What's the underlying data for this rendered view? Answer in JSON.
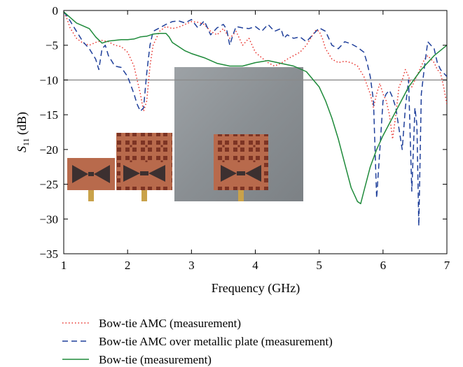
{
  "chart_data": {
    "type": "line",
    "xlabel": "Frequency (GHz)",
    "ylabel_main": "S",
    "ylabel_sub": "11",
    "ylabel_unit": " (dB)",
    "xlim": [
      1,
      7
    ],
    "ylim": [
      -35,
      0
    ],
    "xticks": [
      "1",
      "2",
      "3",
      "4",
      "5",
      "6",
      "7"
    ],
    "yticks": [
      "0",
      "−5",
      "−10",
      "−15",
      "−20",
      "−25",
      "−30",
      "−35"
    ],
    "reference_line_y": -10,
    "inset_photo": "antenna-prototype-photos",
    "colors": {
      "amc": "#e8302a",
      "amc_metal": "#1f3f9a",
      "bowtie": "#1e8a3a",
      "reference": "#8a8a8a"
    },
    "series": [
      {
        "name": "Bow-tie AMC (measurement)",
        "style": "dotted",
        "x": [
          1.0,
          1.05,
          1.1,
          1.2,
          1.3,
          1.4,
          1.5,
          1.6,
          1.7,
          1.8,
          1.9,
          2.0,
          2.1,
          2.2,
          2.25,
          2.3,
          2.35,
          2.4,
          2.5,
          2.6,
          2.7,
          2.8,
          2.9,
          3.0,
          3.1,
          3.2,
          3.3,
          3.4,
          3.5,
          3.6,
          3.7,
          3.8,
          3.9,
          4.0,
          4.1,
          4.2,
          4.3,
          4.4,
          4.5,
          4.6,
          4.7,
          4.8,
          4.9,
          4.95,
          5.0,
          5.05,
          5.1,
          5.2,
          5.3,
          5.4,
          5.5,
          5.6,
          5.7,
          5.8,
          5.85,
          5.9,
          5.95,
          6.0,
          6.05,
          6.1,
          6.15,
          6.2,
          6.25,
          6.3,
          6.35,
          6.4,
          6.45,
          6.5,
          6.55,
          6.6,
          6.65,
          6.7,
          6.75,
          6.8,
          6.85,
          6.9,
          6.95,
          7.0
        ],
        "y": [
          -0.3,
          -1.2,
          -2.5,
          -4.0,
          -4.7,
          -5.0,
          -4.6,
          -4.3,
          -4.5,
          -5.0,
          -5.2,
          -6.0,
          -8.0,
          -12.0,
          -14.5,
          -13.0,
          -8.0,
          -5.0,
          -3.0,
          -2.3,
          -2.6,
          -2.4,
          -2.0,
          -1.6,
          -1.7,
          -2.0,
          -3.0,
          -3.5,
          -2.6,
          -4.0,
          -3.0,
          -5.0,
          -4.0,
          -6.0,
          -6.8,
          -7.5,
          -8.0,
          -7.6,
          -7.0,
          -6.5,
          -6.0,
          -5.0,
          -3.5,
          -2.8,
          -3.0,
          -4.0,
          -5.5,
          -7.0,
          -7.5,
          -7.3,
          -7.5,
          -8.0,
          -9.5,
          -12.0,
          -14.0,
          -12.0,
          -10.5,
          -12.0,
          -13.0,
          -15.0,
          -18.5,
          -15.0,
          -11.0,
          -10.0,
          -8.5,
          -9.5,
          -11.0,
          -10.0,
          -9.0,
          -8.0,
          -7.0,
          -6.5,
          -7.0,
          -7.5,
          -8.5,
          -9.0,
          -11.0,
          -13.5
        ]
      },
      {
        "name": "Bow-tie AMC over metallic plate (measurement)",
        "style": "dashed",
        "x": [
          1.0,
          1.05,
          1.1,
          1.2,
          1.3,
          1.4,
          1.5,
          1.55,
          1.6,
          1.65,
          1.7,
          1.8,
          1.9,
          2.0,
          2.1,
          2.15,
          2.2,
          2.25,
          2.3,
          2.35,
          2.4,
          2.5,
          2.6,
          2.7,
          2.8,
          2.9,
          3.0,
          3.1,
          3.2,
          3.3,
          3.4,
          3.5,
          3.55,
          3.6,
          3.65,
          3.7,
          3.8,
          3.9,
          4.0,
          4.1,
          4.2,
          4.3,
          4.4,
          4.45,
          4.5,
          4.6,
          4.7,
          4.8,
          4.9,
          5.0,
          5.1,
          5.2,
          5.3,
          5.4,
          5.5,
          5.6,
          5.7,
          5.75,
          5.8,
          5.85,
          5.9,
          5.95,
          6.0,
          6.05,
          6.1,
          6.15,
          6.2,
          6.25,
          6.3,
          6.35,
          6.4,
          6.45,
          6.5,
          6.53,
          6.56,
          6.6,
          6.65,
          6.7,
          6.75,
          6.8,
          6.85,
          6.9,
          6.95,
          7.0
        ],
        "y": [
          -0.2,
          -0.8,
          -1.5,
          -3.0,
          -4.5,
          -5.5,
          -7.0,
          -8.5,
          -5.5,
          -5.0,
          -6.5,
          -8.0,
          -8.2,
          -9.5,
          -12.0,
          -13.5,
          -14.5,
          -14.0,
          -9.0,
          -5.0,
          -3.0,
          -2.5,
          -2.0,
          -1.6,
          -1.5,
          -1.8,
          -1.3,
          -2.5,
          -1.5,
          -3.5,
          -2.5,
          -2.0,
          -2.7,
          -5.0,
          -3.5,
          -2.3,
          -2.5,
          -2.6,
          -2.3,
          -3.0,
          -2.0,
          -3.0,
          -2.6,
          -4.0,
          -3.5,
          -4.0,
          -3.8,
          -4.5,
          -3.5,
          -2.5,
          -3.0,
          -5.0,
          -5.5,
          -4.5,
          -4.8,
          -5.3,
          -6.0,
          -7.5,
          -9.5,
          -13.0,
          -27.0,
          -20.0,
          -13.0,
          -12.0,
          -11.5,
          -12.5,
          -14.0,
          -17.0,
          -20.0,
          -14.0,
          -10.0,
          -26.0,
          -14.0,
          -16.5,
          -31.0,
          -12.0,
          -8.0,
          -4.5,
          -5.0,
          -5.5,
          -7.5,
          -8.5,
          -9.0,
          -9.5
        ]
      },
      {
        "name": "Bow-tie (measurement)",
        "style": "solid",
        "x": [
          1.0,
          1.1,
          1.2,
          1.3,
          1.4,
          1.5,
          1.6,
          1.7,
          1.8,
          1.9,
          2.0,
          2.1,
          2.2,
          2.3,
          2.4,
          2.5,
          2.6,
          2.65,
          2.7,
          2.8,
          2.9,
          3.0,
          3.2,
          3.4,
          3.6,
          3.8,
          4.0,
          4.2,
          4.4,
          4.6,
          4.8,
          5.0,
          5.1,
          5.2,
          5.3,
          5.4,
          5.5,
          5.6,
          5.65,
          5.7,
          5.8,
          5.9,
          6.0,
          6.2,
          6.4,
          6.6,
          6.8,
          7.0
        ],
        "y": [
          -0.2,
          -1.0,
          -1.8,
          -2.2,
          -2.6,
          -3.8,
          -4.7,
          -4.4,
          -4.3,
          -4.2,
          -4.2,
          -4.1,
          -3.8,
          -3.7,
          -3.4,
          -3.3,
          -3.3,
          -3.8,
          -4.6,
          -5.2,
          -5.8,
          -6.2,
          -6.8,
          -7.6,
          -8.0,
          -8.0,
          -7.5,
          -7.2,
          -7.6,
          -8.0,
          -8.8,
          -11.0,
          -13.0,
          -15.5,
          -18.5,
          -22.0,
          -25.5,
          -27.5,
          -27.8,
          -26.0,
          -22.5,
          -20.0,
          -18.0,
          -14.5,
          -11.0,
          -8.5,
          -6.5,
          -5.0
        ]
      }
    ]
  }
}
